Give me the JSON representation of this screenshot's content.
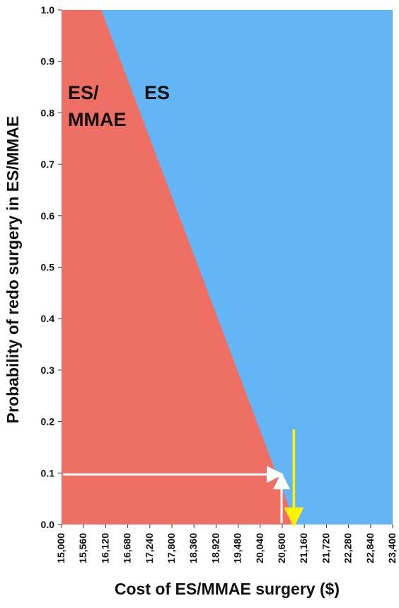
{
  "chart_data": {
    "type": "area",
    "xlabel": "Cost of ES/MMAE surgery ($)",
    "ylabel": "Probability of redo surgery in ES/MMAE",
    "xlim": [
      15000,
      23400
    ],
    "ylim": [
      0.0,
      1.0
    ],
    "x_ticks": [
      "15,000",
      "15,560",
      "16,120",
      "16,680",
      "17,240",
      "17,800",
      "18,360",
      "18,920",
      "19,480",
      "20,040",
      "20,600",
      "21,160",
      "21,720",
      "22,280",
      "22,840",
      "23,400"
    ],
    "y_ticks": [
      "0.0",
      "0.1",
      "0.2",
      "0.3",
      "0.4",
      "0.5",
      "0.6",
      "0.7",
      "0.8",
      "0.9",
      "1.0"
    ],
    "threshold_line": {
      "x": [
        16000,
        20930
      ],
      "y": [
        1.0,
        0.0
      ]
    },
    "regions": [
      {
        "name": "ES/MMAE",
        "label_line1": "ES/",
        "label_line2": "MMAE",
        "side": "left",
        "color": "#EE7064"
      },
      {
        "name": "ES",
        "label": "ES",
        "side": "right",
        "color": "#63B5F6"
      }
    ],
    "annotations": {
      "white_path": {
        "x": 20600,
        "y": 0.1
      },
      "yellow_arrow": {
        "x": 20930,
        "y_from": 0.185,
        "y_to": 0.0
      }
    },
    "colors": {
      "left_region": "#EE7064",
      "right_region": "#63B5F6",
      "white_arrow": "#FFFFFF",
      "yellow_arrow": "#FFF200"
    }
  }
}
